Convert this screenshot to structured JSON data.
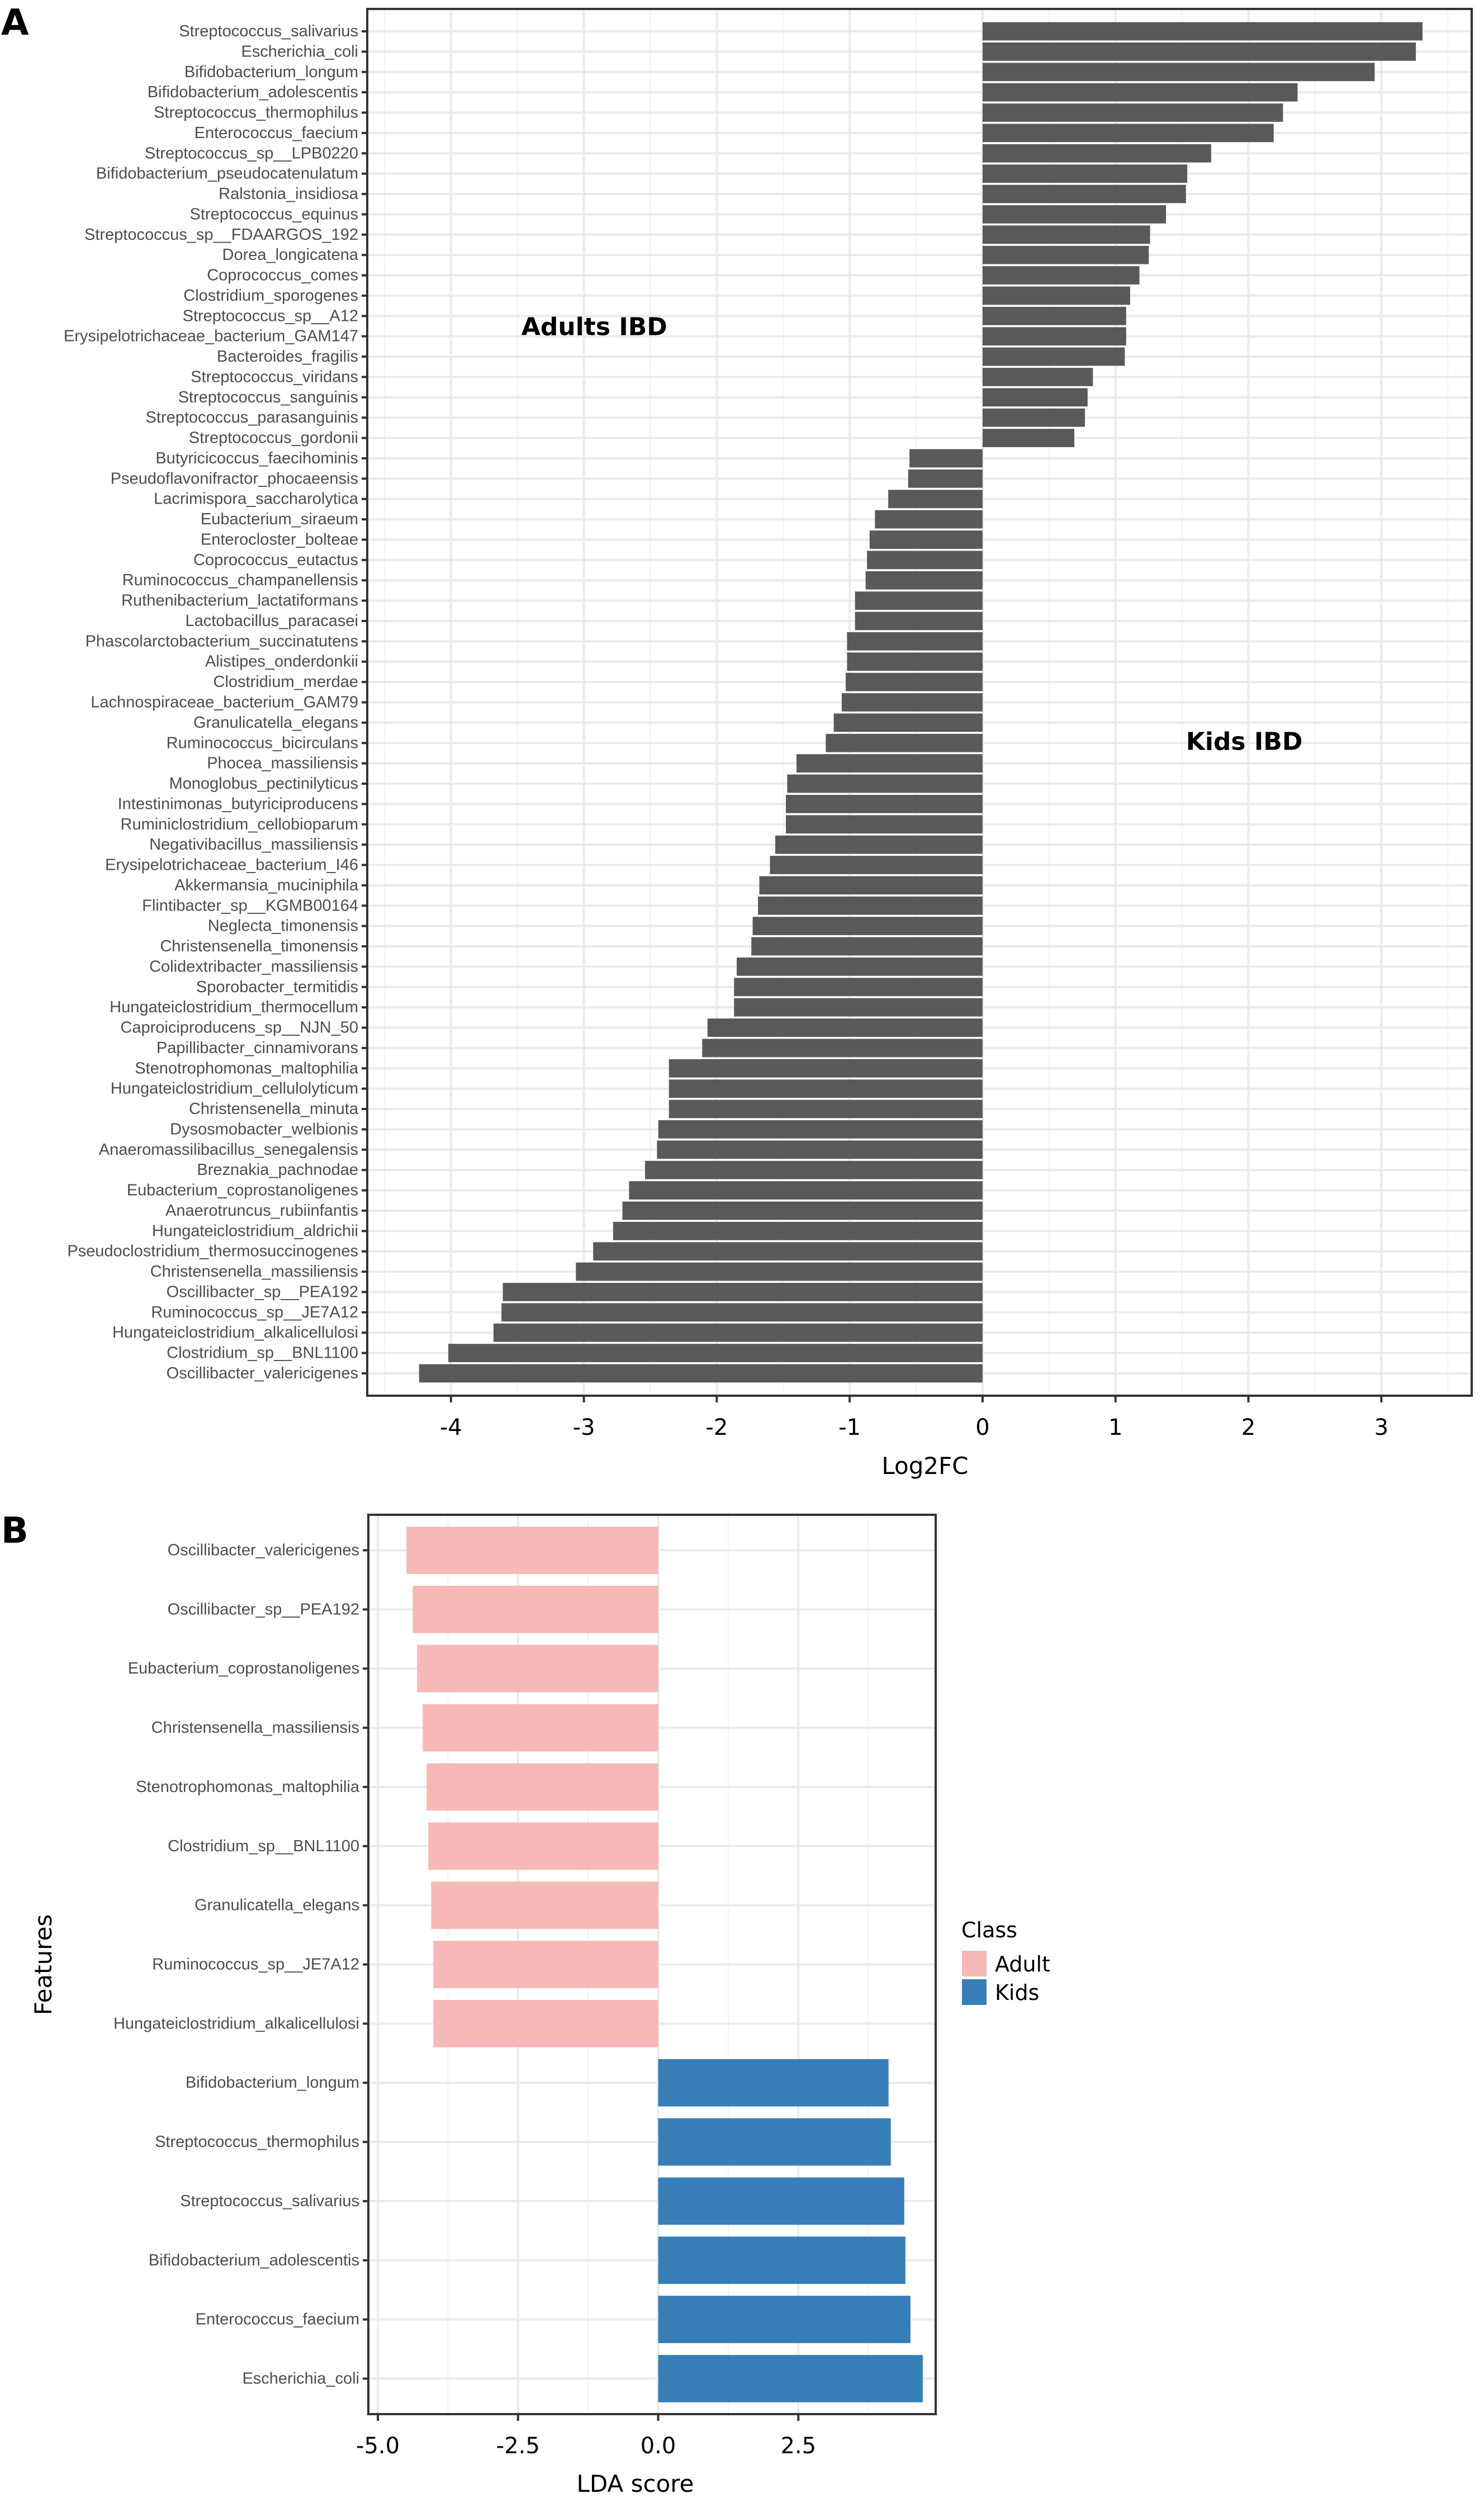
{
  "chart_data": [
    {
      "panel": "A",
      "type": "bar",
      "orientation": "horizontal",
      "xlabel": "Log2FC",
      "ylabel": "",
      "xlim": [
        -4.63,
        3.68
      ],
      "xticks": [
        -4,
        -3,
        -2,
        -1,
        0,
        1,
        2,
        3
      ],
      "xtick_labels": [
        "-4",
        "-3",
        "-2",
        "-1",
        "0",
        "1",
        "2",
        "3"
      ],
      "grid": true,
      "bar_color": "#595959",
      "annotations": [
        {
          "text": "Adults IBD",
          "x": -3.47,
          "category_index": 14.5
        },
        {
          "text": "Kids IBD",
          "x": 1.53,
          "category_index": 34.9
        }
      ],
      "categories": [
        "Streptococcus_salivarius",
        "Escherichia_coli",
        "Bifidobacterium_longum",
        "Bifidobacterium_adolescentis",
        "Streptococcus_thermophilus",
        "Enterococcus_faecium",
        "Streptococcus_sp__LPB0220",
        "Bifidobacterium_pseudocatenulatum",
        "Ralstonia_insidiosa",
        "Streptococcus_equinus",
        "Streptococcus_sp__FDAARGOS_192",
        "Dorea_longicatena",
        "Coprococcus_comes",
        "Clostridium_sporogenes",
        "Streptococcus_sp__A12",
        "Erysipelotrichaceae_bacterium_GAM147",
        "Bacteroides_fragilis",
        "Streptococcus_viridans",
        "Streptococcus_sanguinis",
        "Streptococcus_parasanguinis",
        "Streptococcus_gordonii",
        "Butyricicoccus_faecihominis",
        "Pseudoflavonifractor_phocaeensis",
        "Lacrimispora_saccharolytica",
        "Eubacterium_siraeum",
        "Enterocloster_bolteae",
        "Coprococcus_eutactus",
        "Ruminococcus_champanellensis",
        "Ruthenibacterium_lactatiformans",
        "Lactobacillus_paracasei",
        "Phascolarctobacterium_succinatutens",
        "Alistipes_onderdonkii",
        "Clostridium_merdae",
        "Lachnospiraceae_bacterium_GAM79",
        "Granulicatella_elegans",
        "Ruminococcus_bicirculans",
        "Phocea_massiliensis",
        "Monoglobus_pectinilyticus",
        "Intestinimonas_butyriciproducens",
        "Ruminiclostridium_cellobioparum",
        "Negativibacillus_massiliensis",
        "Erysipelotrichaceae_bacterium_I46",
        "Akkermansia_muciniphila",
        "Flintibacter_sp__KGMB00164",
        "Neglecta_timonensis",
        "Christensenella_timonensis",
        "Colidextribacter_massiliensis",
        "Sporobacter_termitidis",
        "Hungateiclostridium_thermocellum",
        "Caproiciproducens_sp__NJN_50",
        "Papillibacter_cinnamivorans",
        "Stenotrophomonas_maltophilia",
        "Hungateiclostridium_cellulolyticum",
        "Christensenella_minuta",
        "Dysosmobacter_welbionis",
        "Anaeromassilibacillus_senegalensis",
        "Breznakia_pachnodae",
        "Eubacterium_coprostanoligenes",
        "Anaerotruncus_rubiinfantis",
        "Hungateiclostridium_aldrichii",
        "Pseudoclostridium_thermosuccinogenes",
        "Christensenella_massiliensis",
        "Oscillibacter_sp__PEA192",
        "Ruminococcus_sp__JE7A12",
        "Hungateiclostridium_alkalicellulosi",
        "Clostridium_sp__BNL1100",
        "Oscillibacter_valericigenes"
      ],
      "values": [
        3.31,
        3.26,
        2.95,
        2.37,
        2.26,
        2.19,
        1.72,
        1.54,
        1.53,
        1.38,
        1.26,
        1.25,
        1.18,
        1.11,
        1.08,
        1.08,
        1.07,
        0.83,
        0.79,
        0.77,
        0.69,
        -0.55,
        -0.56,
        -0.71,
        -0.81,
        -0.85,
        -0.87,
        -0.88,
        -0.96,
        -0.96,
        -1.02,
        -1.02,
        -1.03,
        -1.06,
        -1.12,
        -1.18,
        -1.4,
        -1.47,
        -1.48,
        -1.48,
        -1.56,
        -1.6,
        -1.68,
        -1.69,
        -1.73,
        -1.74,
        -1.85,
        -1.87,
        -1.87,
        -2.07,
        -2.11,
        -2.36,
        -2.36,
        -2.36,
        -2.44,
        -2.45,
        -2.54,
        -2.66,
        -2.71,
        -2.78,
        -2.93,
        -3.06,
        -3.61,
        -3.62,
        -3.68,
        -4.02,
        -4.24
      ]
    },
    {
      "panel": "B",
      "type": "bar",
      "orientation": "horizontal",
      "xlabel": "LDA score",
      "ylabel": "Features",
      "xlim": [
        -5.17,
        4.95
      ],
      "xticks": [
        -5.0,
        -2.5,
        0.0,
        2.5
      ],
      "xtick_labels": [
        "-5.0",
        "-2.5",
        "0.0",
        "2.5"
      ],
      "grid": true,
      "legend": {
        "title": "Class",
        "position": "right",
        "entries": [
          {
            "label": "Adult",
            "color": "#f7b8b8"
          },
          {
            "label": "Kids",
            "color": "#377eb8"
          }
        ]
      },
      "categories": [
        "Oscillibacter_valericigenes",
        "Oscillibacter_sp__PEA192",
        "Eubacterium_coprostanoligenes",
        "Christensenella_massiliensis",
        "Stenotrophomonas_maltophilia",
        "Clostridium_sp__BNL1100",
        "Granulicatella_elegans",
        "Ruminococcus_sp__JE7A12",
        "Hungateiclostridium_alkalicellulosi",
        "Bifidobacterium_longum",
        "Streptococcus_thermophilus",
        "Streptococcus_salivarius",
        "Bifidobacterium_adolescentis",
        "Enterococcus_faecium",
        "Escherichia_coli"
      ],
      "values": [
        -4.49,
        -4.38,
        -4.3,
        -4.2,
        -4.13,
        -4.1,
        -4.05,
        -4.01,
        -4.01,
        4.11,
        4.15,
        4.39,
        4.41,
        4.5,
        4.72
      ],
      "classes": [
        "Adult",
        "Adult",
        "Adult",
        "Adult",
        "Adult",
        "Adult",
        "Adult",
        "Adult",
        "Adult",
        "Kids",
        "Kids",
        "Kids",
        "Kids",
        "Kids",
        "Kids"
      ]
    }
  ],
  "panels": {
    "a_letter": "A",
    "b_letter": "B"
  }
}
